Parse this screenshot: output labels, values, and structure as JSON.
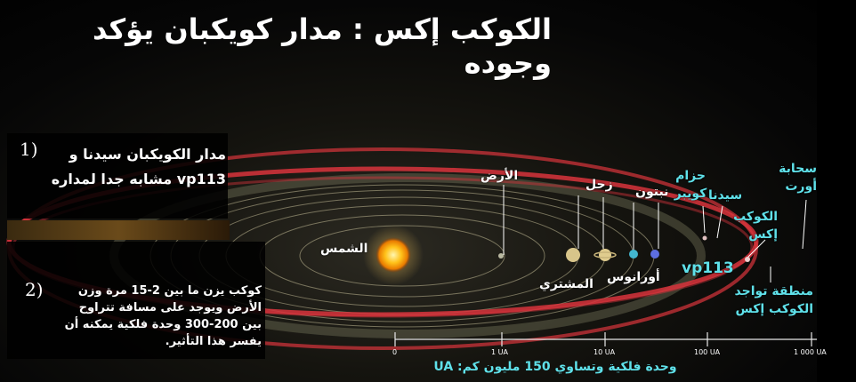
{
  "title": "الكوكب إكس : مدار كويكبان يؤكد وجوده",
  "notes": [
    {
      "number": "1)",
      "lines": [
        "مدار الكويكبان  سيدنا و",
        "vp113 مشابه جدا لمداره"
      ]
    },
    {
      "number": "2)",
      "lines": [
        "كوكب يزن ما بين 2-15 مرة وزن",
        "الأرض ويوجد على مسافة تتراوح",
        "بين 200-300 وحدة فلكية يمكنه أن",
        "يفسر هذا التأثير."
      ]
    }
  ],
  "labels": {
    "sun": "الشمس",
    "earth": "الأرض",
    "saturn": "زحل",
    "jupiter": "المشتري",
    "neptune": "نبتون",
    "uranus": "أورانوس",
    "kuiper": "حزام كويبر",
    "sedna": "سيدنا",
    "vp113": "vp113",
    "planet_x": "الكوكب إكس",
    "oort": "سحابة أورت",
    "planet_x_zone": "منطقة تواجد الكوكب إكس"
  },
  "scale": {
    "ticks": [
      "0",
      "1 UA",
      "10 UA",
      "100 UA",
      "1 000 UA"
    ],
    "caption": "وحدة فلكية وتساوي 150 مليون كم: UA"
  },
  "colors": {
    "orbit_red": "#d8343c",
    "label_cyan": "#5fe1ea",
    "label_white": "#ffffff",
    "sun": "#ffb400"
  }
}
